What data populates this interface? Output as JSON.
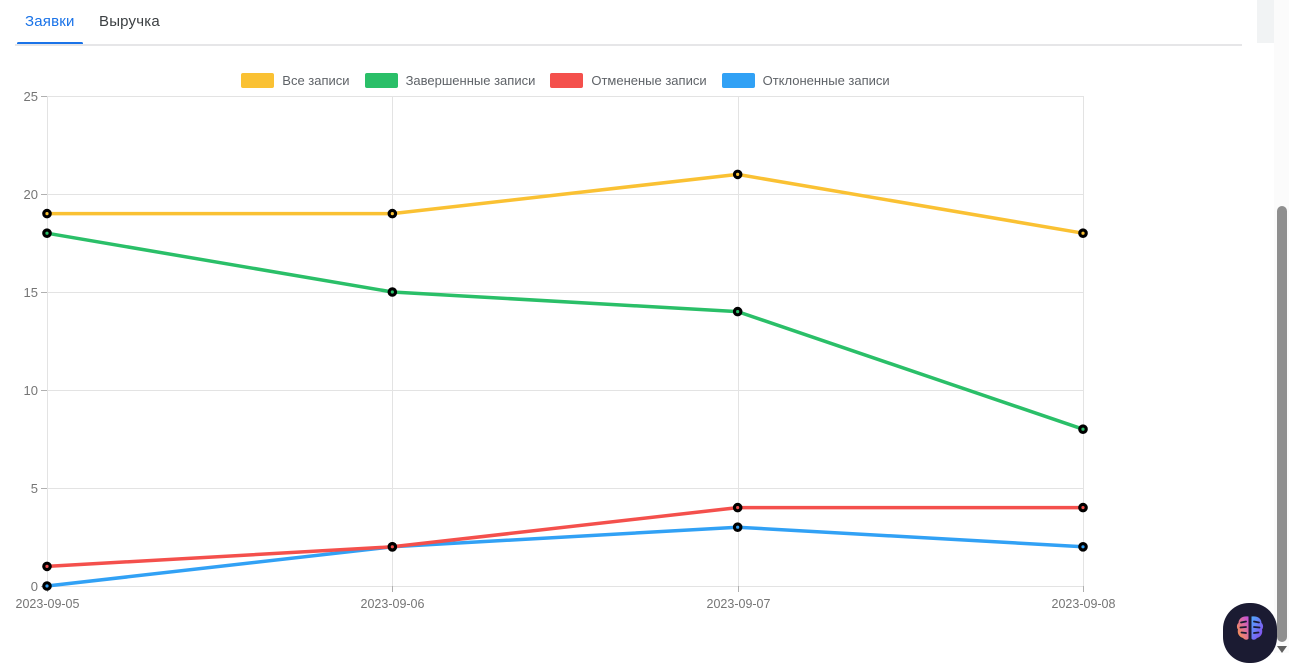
{
  "tabs": {
    "items": [
      {
        "label": "Заявки",
        "active": true
      },
      {
        "label": "Выручка",
        "active": false
      }
    ]
  },
  "chart_data": {
    "type": "line",
    "x": [
      "2023-09-05",
      "2023-09-06",
      "2023-09-07",
      "2023-09-08"
    ],
    "series": [
      {
        "name": "Все записи",
        "color": "#fac133",
        "values": [
          19,
          19,
          21,
          18
        ]
      },
      {
        "name": "Завершенные записи",
        "color": "#2abf68",
        "values": [
          18,
          15,
          14,
          8
        ]
      },
      {
        "name": "Отмененые записи",
        "color": "#f4504c",
        "values": [
          1,
          2,
          4,
          4
        ]
      },
      {
        "name": "Отклоненные записи",
        "color": "#31a1f5",
        "values": [
          0,
          2,
          3,
          2
        ]
      }
    ],
    "ylim": [
      0,
      25
    ],
    "yticks": [
      0,
      5,
      10,
      15,
      20,
      25
    ],
    "grid": true,
    "legend_position": "top",
    "marker": "black-ring-dot"
  },
  "colors": {
    "tab_active": "#1a73e8",
    "tab_inactive": "#3c4043",
    "grid_line": "#e3e3e3",
    "tick_mark": "#b0b0b0",
    "axis_label": "#757575",
    "legend_label": "#5f6368",
    "scroll_thumb": "#8f8f8f",
    "brain_button_bg": "#1b1b32"
  },
  "widgets": {
    "brain_button_icon": "brain-icon",
    "scroll_arrow_icon": "chevron-down-icon"
  }
}
